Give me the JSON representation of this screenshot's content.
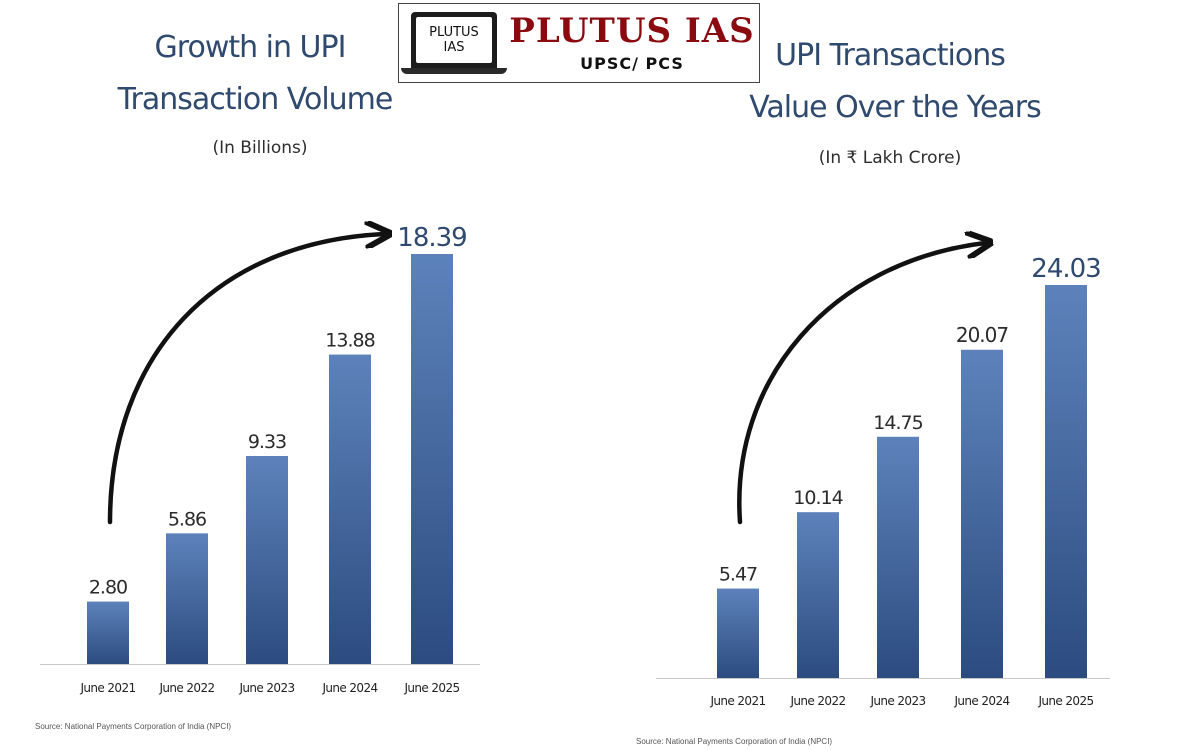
{
  "logo": {
    "laptop_line1": "PLUTUS",
    "laptop_line2": "IAS",
    "brand": "PLUTUS IAS",
    "tagline": "UPSC/ PCS"
  },
  "colors": {
    "bar": "#4a6fa8",
    "bar_dark": "#2c4c80",
    "title": "#2f4a6e",
    "label": "#2b2b2b",
    "arrow": "#111111"
  },
  "chart_data": [
    {
      "type": "bar",
      "title_line1": "Growth in UPI",
      "title_line2": "Transaction Volume",
      "subtitle": "(In Billions)",
      "categories": [
        "June 2021",
        "June 2022",
        "June 2023",
        "June 2024",
        "June 2025"
      ],
      "values": [
        2.8,
        5.86,
        9.33,
        13.88,
        18.39
      ],
      "value_labels": [
        "2.80",
        "5.86",
        "9.33",
        "13.88",
        "18.39"
      ],
      "ylim": [
        0,
        18.39
      ],
      "grid": false,
      "legend": "none",
      "source": "Source: National Payments Corporation of India (NPCI)"
    },
    {
      "type": "bar",
      "title_line1": "UPI Transactions",
      "title_line2": "Value Over the Years",
      "subtitle": "(In ₹ Lakh Crore)",
      "categories": [
        "June 2021",
        "June 2022",
        "June 2023",
        "June 2024",
        "June 2025"
      ],
      "values": [
        5.47,
        10.14,
        14.75,
        20.07,
        24.03
      ],
      "value_labels": [
        "5.47",
        "10.14",
        "14.75",
        "20.07",
        "24.03"
      ],
      "ylim": [
        0,
        24.03
      ],
      "grid": false,
      "legend": "none",
      "source": "Source: National Payments Corporation of India (NPCI)"
    }
  ]
}
